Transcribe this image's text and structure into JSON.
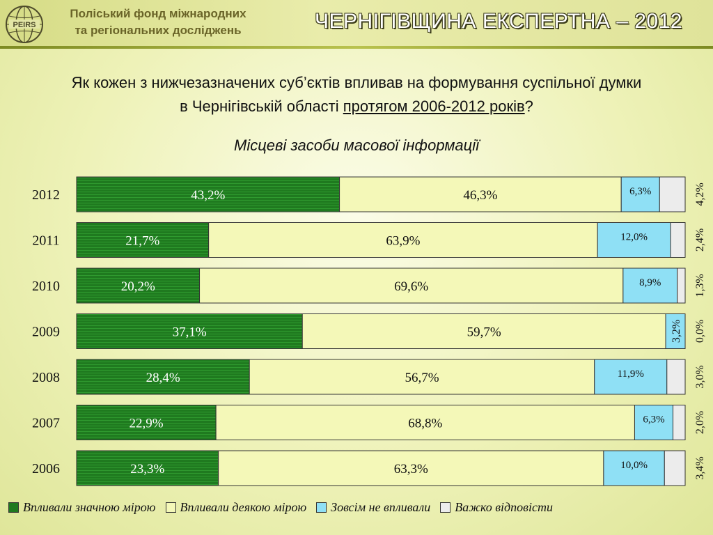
{
  "header": {
    "org_line1": "Поліський фонд міжнародних",
    "org_line2": "та регіональних досліджень",
    "logo_text": "PEIRS",
    "brand": "ЧЕРНІГІВЩИНА ЕКСПЕРТНА – 2012"
  },
  "question": {
    "line1": "Як кожен з нижчезазначених суб’єктів впливав на формування суспільної думки",
    "line2_prefix": "в Чернігівській області ",
    "line2_underlined": "протягом 2006-2012 років",
    "line2_suffix": "?"
  },
  "chart_title": "Місцеві засоби масової інформації",
  "colors": {
    "significant": "#1f7a1f",
    "somewhat": "#f4f8b8",
    "none": "#8fe0f5",
    "hard": "#ececec"
  },
  "chart_data": {
    "type": "bar",
    "stacked": true,
    "orientation": "horizontal",
    "categories": [
      "2012",
      "2011",
      "2010",
      "2009",
      "2008",
      "2007",
      "2006"
    ],
    "series": [
      {
        "name": "Впливали значною мірою",
        "values": [
          43.2,
          21.7,
          20.2,
          37.1,
          28.4,
          22.9,
          23.3
        ],
        "labels": [
          "43,2%",
          "21,7%",
          "20,2%",
          "37,1%",
          "28,4%",
          "22,9%",
          "23,3%"
        ]
      },
      {
        "name": "Впливали деякою мірою",
        "values": [
          46.3,
          63.9,
          69.6,
          59.7,
          56.7,
          68.8,
          63.3
        ],
        "labels": [
          "46,3%",
          "63,9%",
          "69,6%",
          "59,7%",
          "56,7%",
          "68,8%",
          "63,3%"
        ]
      },
      {
        "name": "Зовсім не впливали",
        "values": [
          6.3,
          12.0,
          8.9,
          3.2,
          11.9,
          6.3,
          10.0
        ],
        "labels": [
          "6,3%",
          "12,0%",
          "8,9%",
          "3,2%",
          "11,9%",
          "6,3%",
          "10,0%"
        ]
      },
      {
        "name": "Важко відповісти",
        "values": [
          4.2,
          2.4,
          1.3,
          0.0,
          3.0,
          2.0,
          3.4
        ],
        "labels": [
          "4,2%",
          "2,4%",
          "1,3%",
          "0,0%",
          "3,0%",
          "2,0%",
          "3,4%"
        ]
      }
    ],
    "xlim": [
      0,
      100
    ],
    "legend_position": "bottom"
  }
}
